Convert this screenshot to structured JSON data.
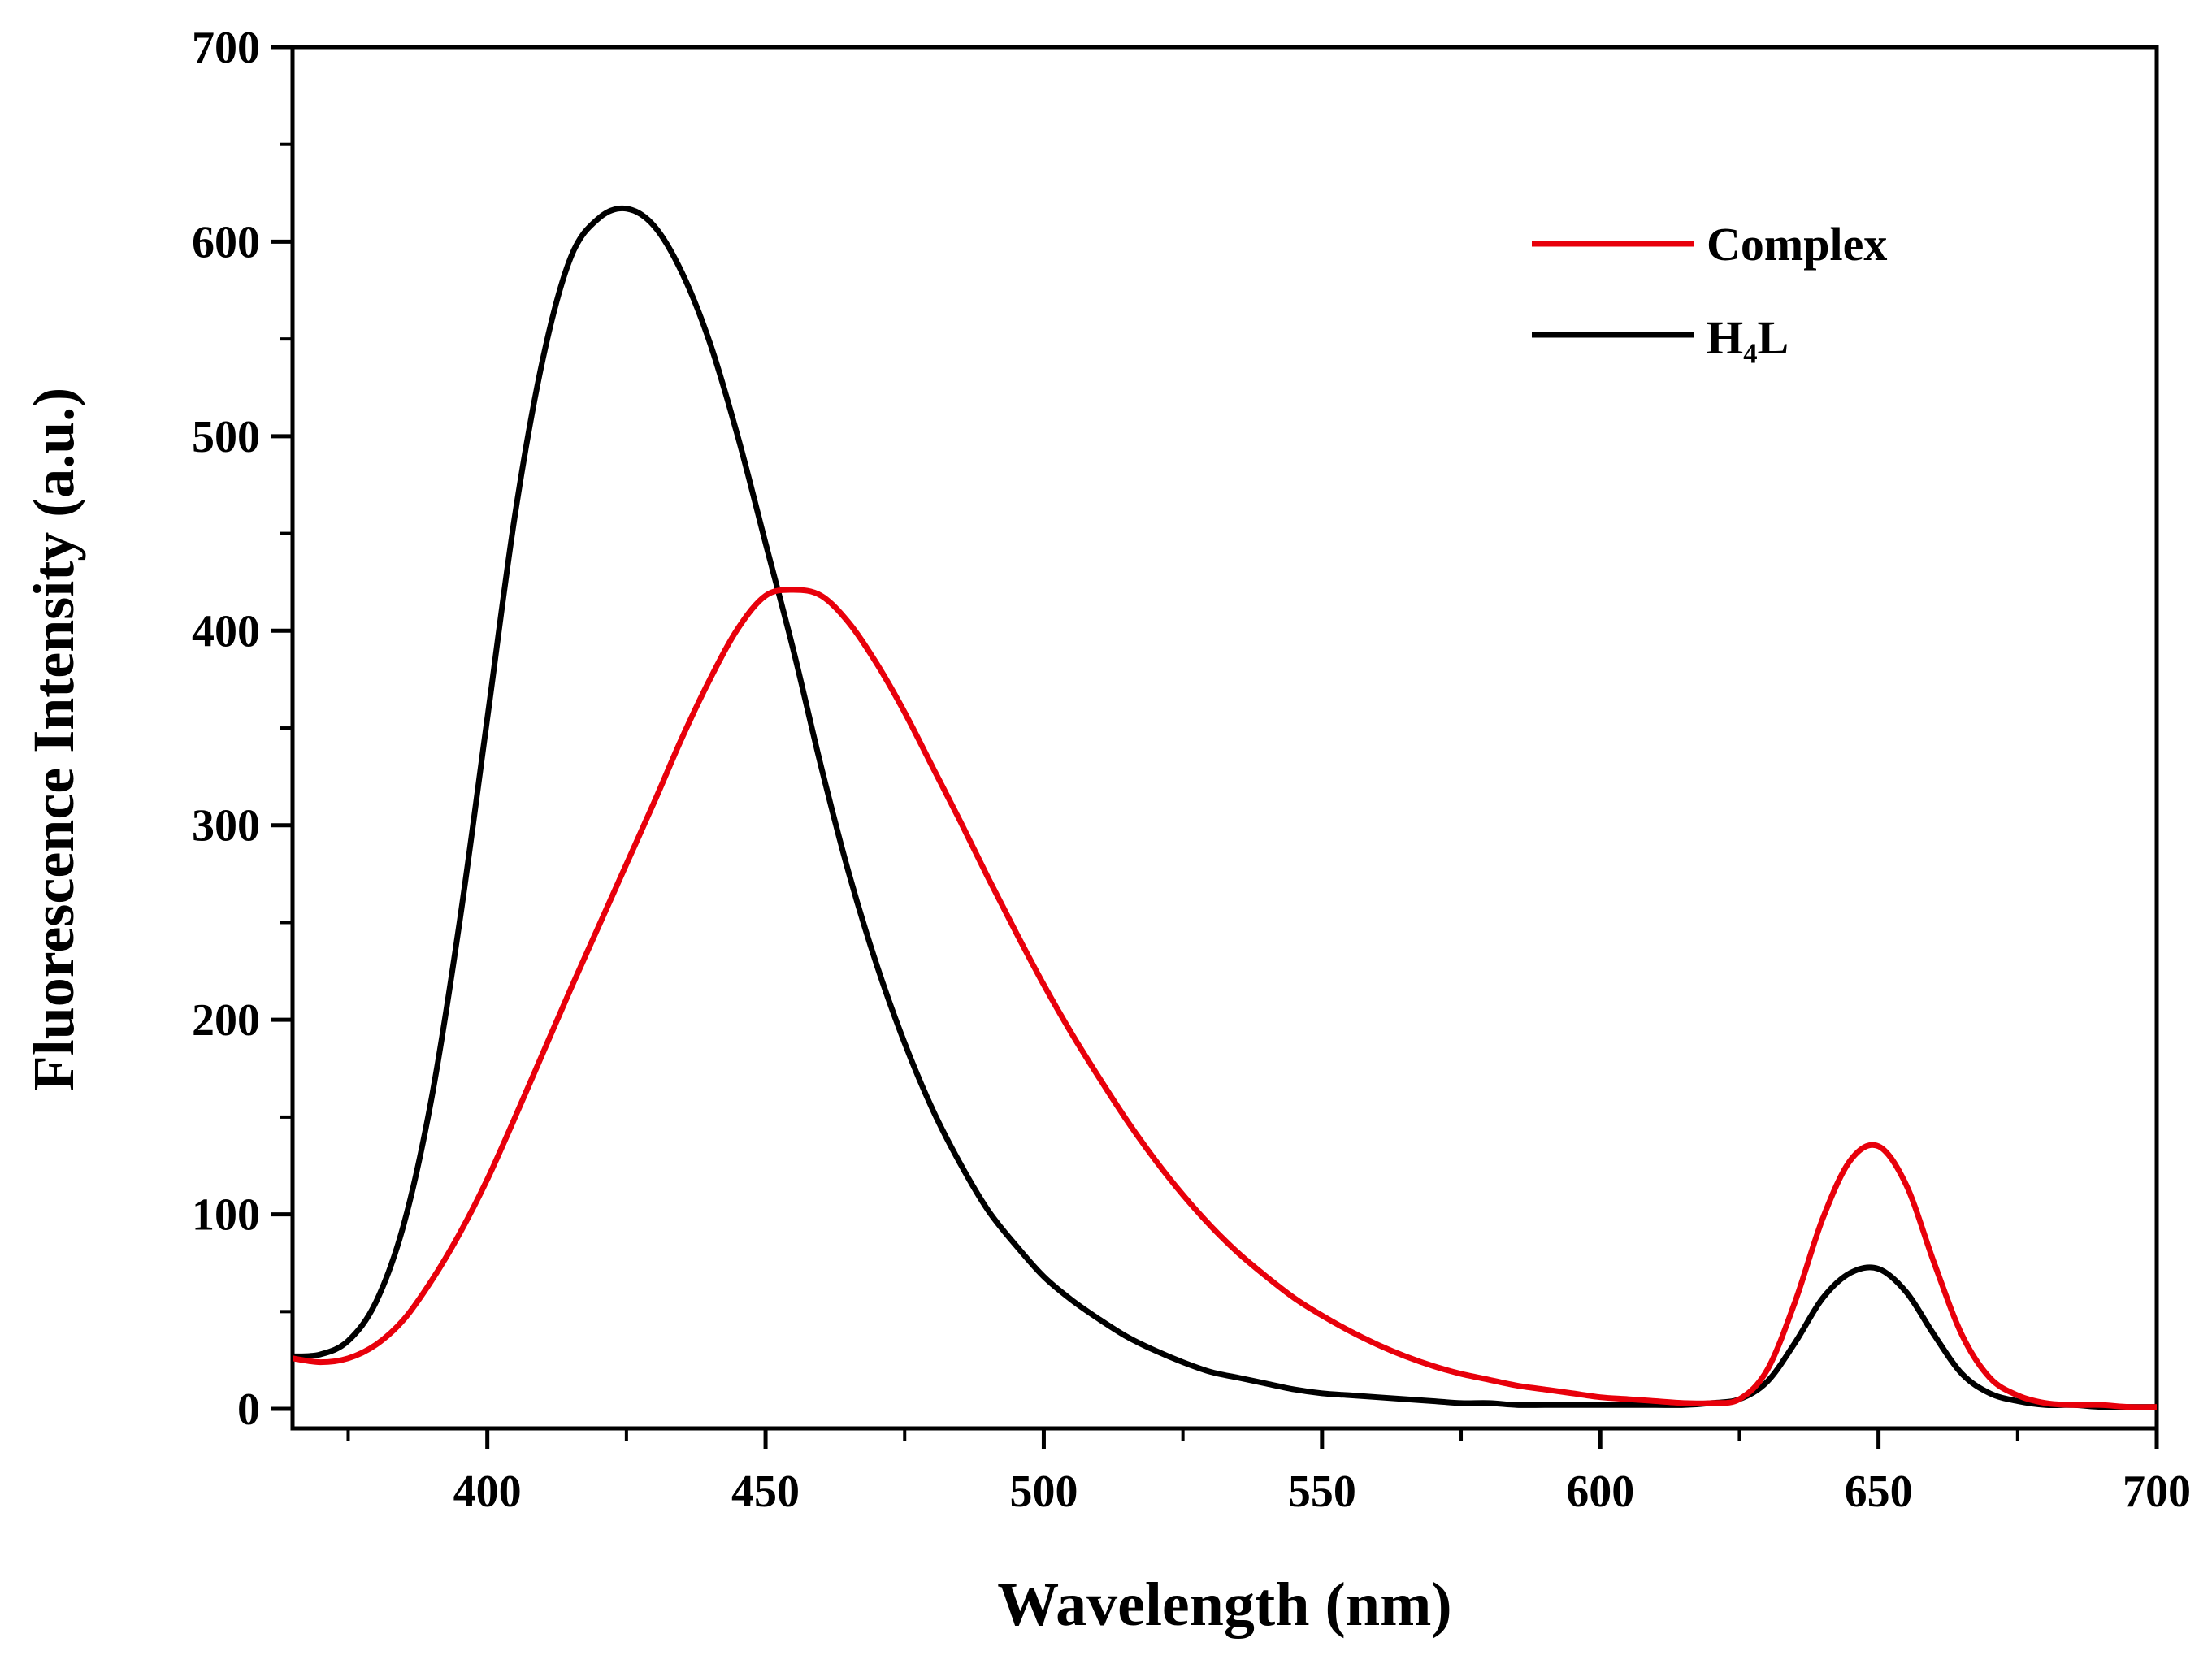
{
  "chart_data": {
    "type": "line",
    "xlabel": "Wavelength (nm)",
    "ylabel": "Fluorescence Intensity (a.u.)",
    "xlim": [
      365,
      700
    ],
    "ylim": [
      -10,
      700
    ],
    "grid": false,
    "legend_position": "top-right",
    "x_ticks": [
      400,
      450,
      500,
      550,
      600,
      650,
      700
    ],
    "x_tick_labels": [
      "400",
      "450",
      "500",
      "550",
      "600",
      "650",
      "700"
    ],
    "x_minor_ticks": [
      375,
      425,
      475,
      525,
      575,
      625,
      675
    ],
    "y_ticks": [
      0,
      100,
      200,
      300,
      400,
      500,
      600,
      700
    ],
    "y_tick_labels": [
      "0",
      "100",
      "200",
      "300",
      "400",
      "500",
      "600",
      "700"
    ],
    "y_minor_ticks": [
      50,
      150,
      250,
      350,
      450,
      550,
      650
    ],
    "series": [
      {
        "name": "Complex",
        "color": "#e8000b",
        "x": [
          365,
          370,
          375,
          380,
          385,
          390,
          395,
          400,
          405,
          410,
          415,
          420,
          425,
          430,
          435,
          440,
          445,
          450,
          455,
          460,
          465,
          470,
          475,
          480,
          485,
          490,
          495,
          500,
          505,
          510,
          515,
          520,
          525,
          530,
          535,
          540,
          545,
          550,
          555,
          560,
          565,
          570,
          575,
          580,
          585,
          590,
          595,
          600,
          605,
          610,
          615,
          620,
          625,
          630,
          635,
          640,
          645,
          650,
          655,
          660,
          665,
          670,
          675,
          680,
          685,
          690,
          695,
          700
        ],
        "values": [
          26,
          24,
          26,
          33,
          46,
          66,
          90,
          118,
          150,
          183,
          216,
          248,
          280,
          312,
          345,
          375,
          401,
          418,
          421,
          418,
          404,
          383,
          358,
          330,
          302,
          273,
          245,
          218,
          193,
          170,
          148,
          128,
          110,
          94,
          80,
          68,
          57,
          48,
          40,
          33,
          27,
          22,
          18,
          15,
          12,
          10,
          8,
          6,
          5,
          4,
          3,
          3,
          5,
          20,
          55,
          98,
          128,
          135,
          115,
          75,
          38,
          16,
          7,
          3,
          2,
          2,
          1,
          1
        ]
      },
      {
        "name": "H₄L",
        "color": "#000000",
        "x": [
          365,
          370,
          375,
          380,
          385,
          390,
          395,
          400,
          405,
          410,
          415,
          420,
          425,
          430,
          435,
          440,
          445,
          450,
          455,
          460,
          465,
          470,
          475,
          480,
          485,
          490,
          495,
          500,
          505,
          510,
          515,
          520,
          525,
          530,
          535,
          540,
          545,
          550,
          555,
          560,
          565,
          570,
          575,
          580,
          585,
          590,
          595,
          600,
          605,
          610,
          615,
          620,
          625,
          630,
          635,
          640,
          645,
          650,
          655,
          660,
          665,
          670,
          675,
          680,
          685,
          690,
          695,
          700
        ],
        "values": [
          27,
          28,
          35,
          55,
          95,
          160,
          250,
          355,
          460,
          540,
          592,
          612,
          617,
          608,
          584,
          548,
          500,
          445,
          390,
          330,
          275,
          228,
          188,
          154,
          126,
          102,
          84,
          68,
          56,
          46,
          37,
          30,
          24,
          19,
          16,
          13,
          10,
          8,
          7,
          6,
          5,
          4,
          3,
          3,
          2,
          2,
          2,
          2,
          2,
          2,
          2,
          3,
          5,
          14,
          34,
          57,
          70,
          72,
          60,
          38,
          18,
          8,
          4,
          2,
          2,
          1,
          1,
          1
        ]
      }
    ],
    "legend": [
      "Complex",
      "H₄L"
    ]
  }
}
